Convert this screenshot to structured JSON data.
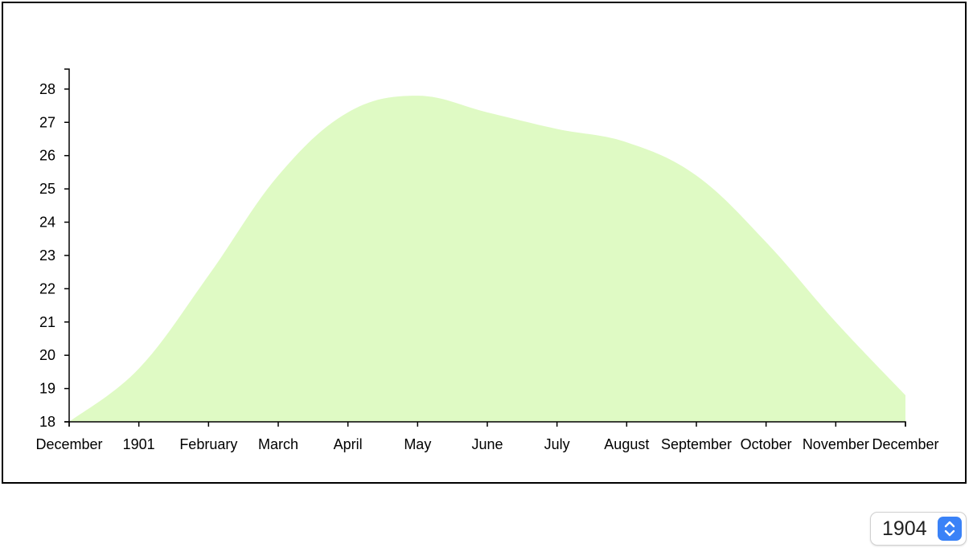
{
  "chart_data": {
    "type": "area",
    "title": "",
    "xlabel": "",
    "ylabel": "",
    "x_tick_labels": [
      "December",
      "1901",
      "February",
      "March",
      "April",
      "May",
      "June",
      "July",
      "August",
      "September",
      "October",
      "November",
      "December"
    ],
    "x": [
      "1900-12",
      "1901-01",
      "1901-02",
      "1901-03",
      "1901-04",
      "1901-05",
      "1901-06",
      "1901-07",
      "1901-08",
      "1901-09",
      "1901-10",
      "1901-11",
      "1901-12"
    ],
    "values": [
      17.9,
      19.6,
      22.4,
      25.4,
      27.3,
      27.8,
      27.3,
      26.8,
      26.4,
      25.4,
      23.4,
      21.0,
      18.8
    ],
    "ylim": [
      18,
      28.6
    ],
    "y_ticks": [
      18,
      19,
      20,
      21,
      22,
      23,
      24,
      25,
      26,
      27,
      28
    ],
    "grid": false,
    "colors": {
      "fill": "#dffac4",
      "axis": "#000000"
    }
  },
  "year_select": {
    "value": "1904",
    "accent": "#3a82f7"
  }
}
